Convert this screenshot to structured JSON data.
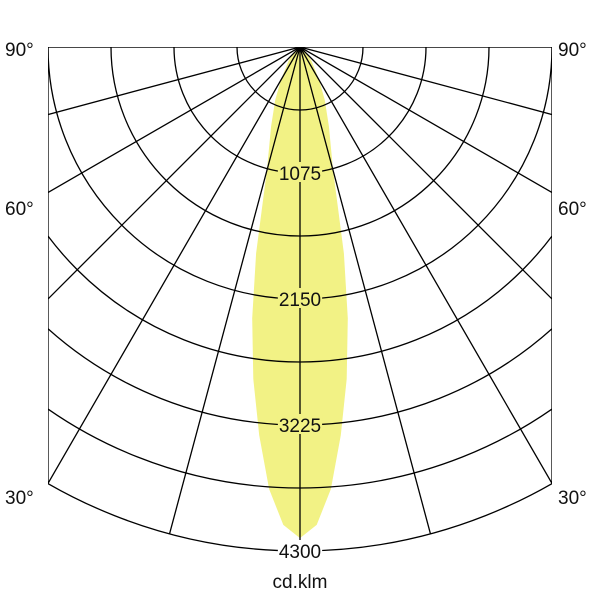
{
  "chart_data": {
    "type": "polar",
    "unit_label": "cd.klm",
    "radial_ticks": [
      1075,
      2150,
      3225,
      4300
    ],
    "radial_max": 4300,
    "radial_grid_step": 537.5,
    "angle_labels": {
      "left": [
        "90°",
        "60°",
        "30°"
      ],
      "right": [
        "90°",
        "60°",
        "30°"
      ]
    },
    "angle_grid_step_deg": 15,
    "angle_range_deg": [
      -90,
      90
    ],
    "grid": true,
    "symmetric": true,
    "series": [
      {
        "angles_deg": [
          0,
          2,
          4,
          6,
          8,
          10,
          12,
          15,
          20,
          25,
          30,
          40,
          50,
          60,
          90
        ],
        "values": [
          4190,
          4080,
          3780,
          3330,
          2860,
          2350,
          1800,
          1090,
          720,
          500,
          330,
          150,
          60,
          20,
          0
        ],
        "fill_color": "#f2f285"
      }
    ]
  }
}
